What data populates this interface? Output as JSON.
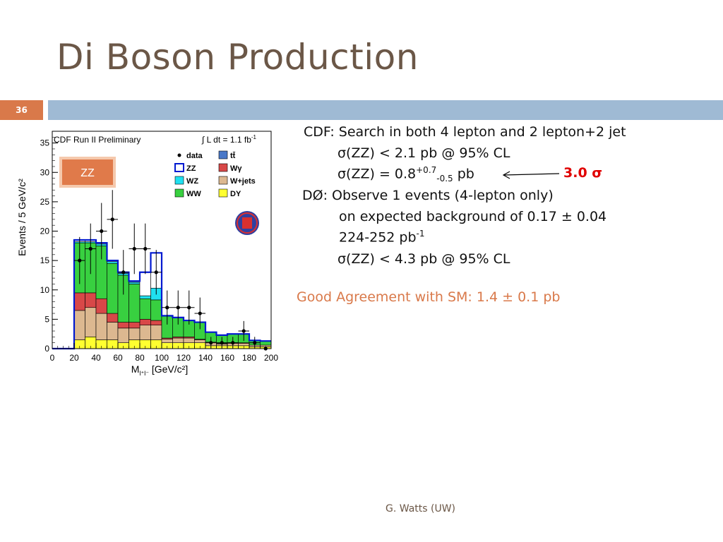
{
  "slide": {
    "title": "Di Boson Production",
    "number": "36",
    "footer": "G. Watts (UW)"
  },
  "bullets": {
    "cdf_head": "CDF: Search in both 4 lepton and 2 lepton+2 jet",
    "cdf_limit": "σ(ZZ) < 2.1 pb @ 95% CL",
    "cdf_meas_prefix": "σ(ZZ) = 0.8",
    "cdf_meas_up": "+0.7",
    "cdf_meas_down": "-0.5",
    "cdf_meas_unit": " pb",
    "significance": "3.0 σ",
    "d0_head": "DØ: Observe 1 events (4-lepton only)",
    "d0_bkg": "on expected background of 0.17 ± 0.04",
    "d0_lumi_prefix": "224-252 pb",
    "d0_lumi_exp": "-1",
    "d0_limit": "σ(ZZ) < 4.3 pb @ 95% CL",
    "agreement": "Good Agreement with SM: 1.4 ± 0.1 pb"
  },
  "chart_data": {
    "type": "bar",
    "title": "CDF Run II Preliminary",
    "lumi_label_prefix": "∫ L dt = 1.1 fb",
    "lumi_label_exp": "-1",
    "badge": "ZZ",
    "xlabel_prefix": "M",
    "xlabel_sub": "l⁺l⁻",
    "xlabel_suffix": " [GeV/c²]",
    "ylabel": "Events / 5 GeV/c²",
    "xlim": [
      0,
      200
    ],
    "ylim": [
      0,
      37
    ],
    "x_ticks": [
      0,
      20,
      40,
      60,
      80,
      100,
      120,
      140,
      160,
      180,
      200
    ],
    "y_ticks": [
      0,
      5,
      10,
      15,
      20,
      25,
      30,
      35
    ],
    "bin_edges": [
      0,
      10,
      20,
      30,
      40,
      50,
      60,
      70,
      80,
      90,
      100,
      110,
      120,
      130,
      140,
      150,
      160,
      170,
      180,
      190,
      200
    ],
    "legend": [
      {
        "label": "data",
        "kind": "marker"
      },
      {
        "label": "tt̄",
        "color": "#4a78c8"
      },
      {
        "label": "ZZ",
        "color": "#0018d0",
        "kind": "outline"
      },
      {
        "label": "Wγ",
        "color": "#d84848"
      },
      {
        "label": "WZ",
        "color": "#20e0f0"
      },
      {
        "label": "W+jets",
        "color": "#dcb890"
      },
      {
        "label": "WW",
        "color": "#38d040"
      },
      {
        "label": "DY",
        "color": "#ffff30"
      }
    ],
    "series": [
      {
        "name": "DY",
        "color": "#ffff30",
        "values": [
          0,
          0,
          1.5,
          2,
          1.5,
          1.5,
          1,
          1.5,
          1.5,
          1.5,
          1,
          1,
          1,
          1,
          0.5,
          0.5,
          0.5,
          0.5,
          0.3,
          0.3
        ]
      },
      {
        "name": "W+jets",
        "color": "#dcb890",
        "values": [
          0,
          0,
          5,
          5,
          4.5,
          3,
          2.5,
          2,
          2.5,
          2.5,
          0.6,
          0.8,
          0.8,
          0.5,
          0.5,
          0.3,
          0.4,
          0.4,
          0.3,
          0.3
        ]
      },
      {
        "name": "Wγ",
        "color": "#d84848",
        "values": [
          0,
          0,
          3,
          2.5,
          2.5,
          1.5,
          1,
          1,
          1,
          0.8,
          0.2,
          0.2,
          0.2,
          0.1,
          0.1,
          0.1,
          0.1,
          0.1,
          0,
          0
        ]
      },
      {
        "name": "WW",
        "color": "#38d040",
        "values": [
          0,
          0,
          8.5,
          8.5,
          9,
          8.5,
          8,
          6.5,
          3.5,
          3.5,
          3.7,
          3.3,
          2.8,
          2.9,
          1.7,
          1.4,
          1.5,
          1.5,
          0.8,
          0.7
        ]
      },
      {
        "name": "WZ",
        "color": "#20e0f0",
        "values": [
          0,
          0,
          0.2,
          0.2,
          0.3,
          0.3,
          0.3,
          0.3,
          0.5,
          2,
          0.1,
          0,
          0,
          0,
          0,
          0,
          0,
          0,
          0,
          0
        ]
      },
      {
        "name": "ZZ",
        "color": "#0018d0",
        "values": [
          0,
          0,
          0.3,
          0.3,
          0.2,
          0.2,
          0.2,
          0.2,
          4,
          6,
          0,
          0,
          0,
          0,
          0,
          0,
          0,
          0,
          0,
          0
        ]
      }
    ],
    "data_points": {
      "x": [
        25,
        35,
        45,
        55,
        65,
        75,
        85,
        95,
        105,
        115,
        125,
        135,
        145,
        155,
        165,
        175,
        185,
        195
      ],
      "y": [
        15,
        17,
        20,
        22,
        13,
        17,
        17,
        13,
        7,
        7,
        7,
        6,
        1,
        1,
        1,
        3,
        1,
        0
      ],
      "err": [
        4,
        4.3,
        4.8,
        5,
        3.8,
        4.3,
        4.3,
        3.8,
        2.9,
        2.9,
        2.9,
        2.7,
        1,
        1,
        1,
        1.7,
        1,
        0
      ]
    }
  }
}
